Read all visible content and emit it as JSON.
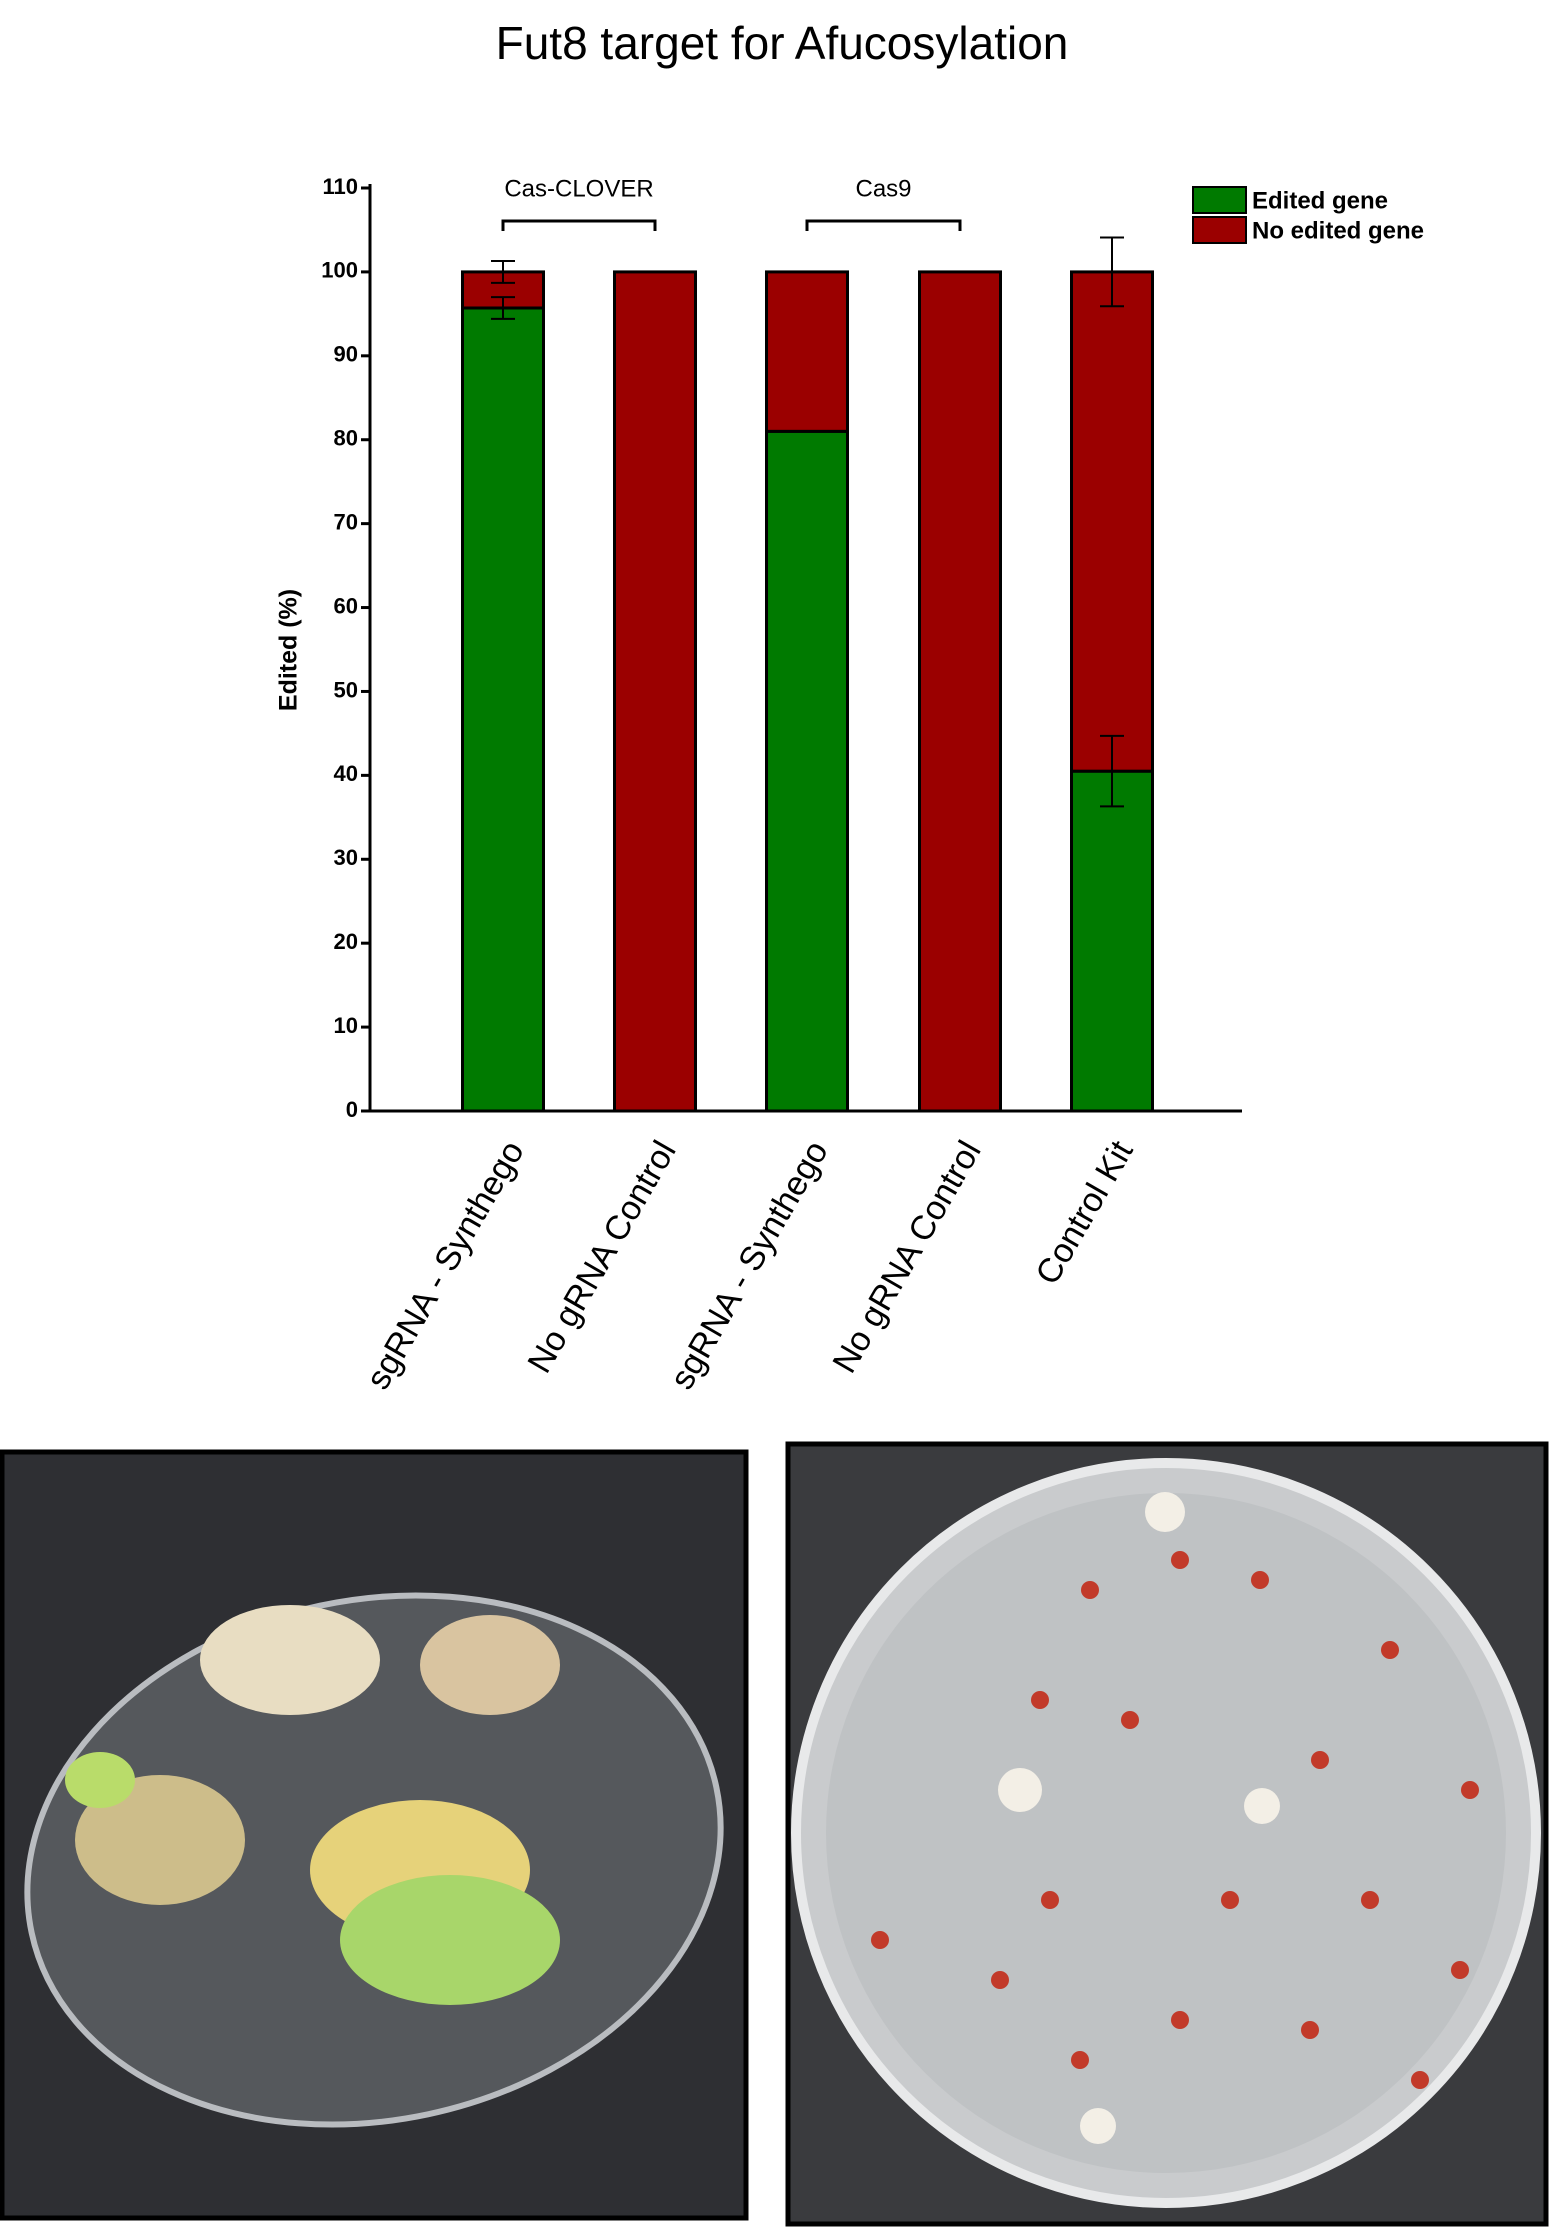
{
  "chart_data": {
    "type": "bar",
    "stacked": true,
    "title": "Fut8 target for Afucosylation",
    "y_label": "Edited (%)",
    "categories": [
      "sgRNA - Synthego",
      "No gRNA Control",
      "sgRNA - Synthego",
      "No gRNA Control",
      "Control Kit"
    ],
    "series": [
      {
        "name": "Edited gene",
        "color": "#007a00",
        "values": [
          95.7,
          0,
          81,
          0,
          40.5
        ],
        "errors": [
          1.3,
          null,
          null,
          null,
          4.2
        ]
      },
      {
        "name": "No edited gene",
        "color": "#9b0000",
        "values": [
          4.3,
          100,
          19,
          100,
          59.5
        ],
        "errors": [
          1.3,
          null,
          null,
          null,
          4.1
        ]
      }
    ],
    "annotations": [
      "Cas-CLOVER",
      "Cas9"
    ],
    "ylim": [
      0,
      110
    ],
    "yticks": [
      0,
      10,
      20,
      30,
      40,
      50,
      60,
      70,
      80,
      90,
      100,
      110
    ],
    "legend": "top-right",
    "grid": false
  }
}
